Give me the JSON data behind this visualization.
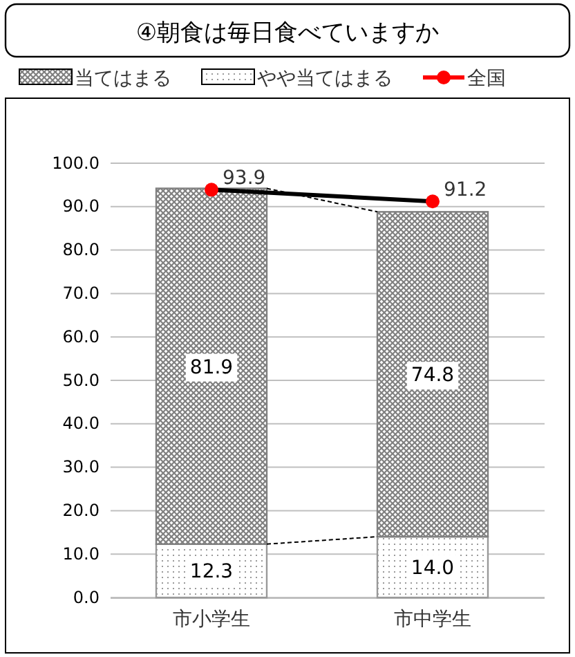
{
  "chart_data": {
    "type": "bar",
    "title": "④朝食は毎日食べていますか",
    "categories": [
      "市小学生",
      "市中学生"
    ],
    "stacked": true,
    "series": [
      {
        "name": "やや当てはまる",
        "color": "#999999",
        "values": [
          12.3,
          14.0
        ],
        "value_labels": [
          "12.3",
          "14.0"
        ]
      },
      {
        "name": "当てはまる",
        "color": "#808080",
        "values": [
          81.9,
          74.8
        ],
        "value_labels": [
          "81.9",
          "74.8"
        ]
      },
      {
        "name": "全国",
        "type": "line",
        "color": "#ff0000",
        "marker": "circle",
        "values": [
          93.9,
          91.2
        ],
        "value_labels": [
          "93.9",
          "91.2"
        ]
      }
    ],
    "ylim": [
      0,
      100
    ],
    "yticks": [
      {
        "value": 0,
        "label": "0.0"
      },
      {
        "value": 10,
        "label": "10.0"
      },
      {
        "value": 20,
        "label": "20.0"
      },
      {
        "value": 30,
        "label": "30.0"
      },
      {
        "value": 40,
        "label": "40.0"
      },
      {
        "value": 50,
        "label": "50.0"
      },
      {
        "value": 60,
        "label": "60.0"
      },
      {
        "value": 70,
        "label": "70.0"
      },
      {
        "value": 80,
        "label": "80.0"
      },
      {
        "value": 90,
        "label": "90.0"
      },
      {
        "value": 100,
        "label": "100.0"
      }
    ],
    "grid": "y",
    "legend": "top"
  }
}
